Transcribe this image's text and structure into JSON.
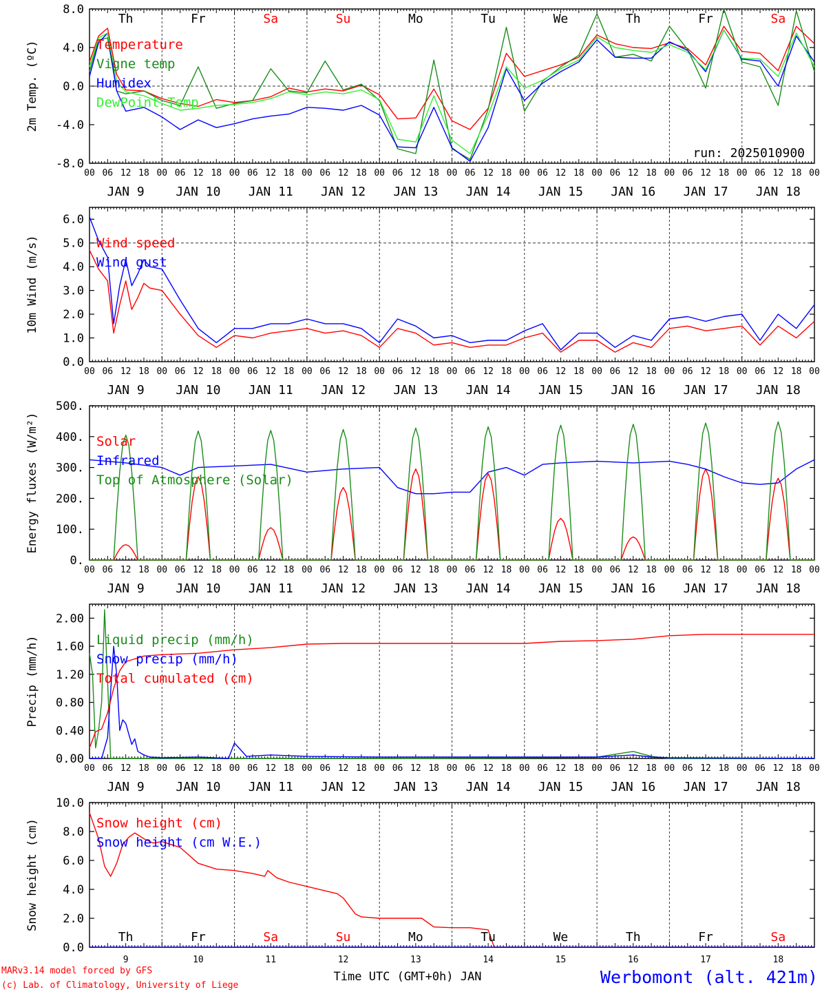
{
  "colors": {
    "red": "#ff0000",
    "green": "#1a8c1a",
    "blue": "#0000ff",
    "light_green": "#33ee33",
    "axis": "#000000",
    "grid": "#333333"
  },
  "days": {
    "names": [
      "Th",
      "Fr",
      "Sa",
      "Su",
      "Mo",
      "Tu",
      "We",
      "Th",
      "Fr",
      "Sa"
    ],
    "weekend_flags": [
      false,
      false,
      true,
      true,
      false,
      false,
      false,
      false,
      false,
      true
    ],
    "date_labels": [
      "JAN  9",
      "JAN 10",
      "JAN 11",
      "JAN 12",
      "JAN 13",
      "JAN 14",
      "JAN 15",
      "JAN 16",
      "JAN 17",
      "JAN 18"
    ],
    "day_numbers": [
      "9",
      "10",
      "11",
      "12",
      "13",
      "14",
      "15",
      "16",
      "17",
      "18"
    ],
    "hour_labels": [
      "00",
      "06",
      "12",
      "18"
    ],
    "end_hour": "00"
  },
  "footer": {
    "model_line": "MARv3.14 model forced by GFS",
    "lab_line": "(c) Lab. of Climatology, University of Liege",
    "time_axis": "Time UTC (GMT+0h) JAN",
    "station": "Werbomont (alt. 421m)"
  },
  "chart_data": [
    {
      "type": "line",
      "ylabel": "2m Temp. (ºC)",
      "ylim": [
        -8,
        8
      ],
      "yticks": [
        "8.0",
        "4.0",
        "0.0",
        "-4.0",
        "-8.0"
      ],
      "annotation": "run: 2025010900",
      "x_unit": "hours from JAN 9 00 UTC",
      "series": [
        {
          "name": "Temperature",
          "color": "red",
          "x": [
            0,
            3,
            6,
            9,
            12,
            18,
            24,
            30,
            36,
            42,
            48,
            54,
            60,
            66,
            72,
            78,
            84,
            90,
            96,
            102,
            108,
            114,
            120,
            126,
            132,
            138,
            144,
            150,
            156,
            162,
            168,
            174,
            180,
            186,
            192,
            198,
            204,
            210,
            216,
            222,
            228,
            234,
            240
          ],
          "y": [
            2.5,
            5.2,
            6.0,
            1.2,
            -0.4,
            -0.5,
            -1.3,
            -1.8,
            -2.1,
            -1.4,
            -1.7,
            -1.5,
            -1.1,
            -0.2,
            -0.6,
            -0.3,
            -0.5,
            0.1,
            -0.9,
            -3.4,
            -3.3,
            -0.3,
            -3.6,
            -4.5,
            -2.3,
            3.4,
            1.0,
            1.6,
            2.2,
            3.0,
            5.3,
            4.4,
            4.0,
            3.9,
            4.5,
            3.9,
            2.2,
            6.2,
            3.6,
            3.4,
            1.6,
            6.2,
            4.4
          ]
        },
        {
          "name": "Vigne temp",
          "color": "green",
          "x": [
            0,
            3,
            6,
            9,
            12,
            18,
            24,
            30,
            36,
            42,
            48,
            54,
            60,
            66,
            72,
            78,
            84,
            90,
            96,
            102,
            108,
            114,
            120,
            126,
            132,
            138,
            144,
            150,
            156,
            162,
            168,
            174,
            180,
            186,
            192,
            198,
            204,
            210,
            216,
            222,
            228,
            234,
            240
          ],
          "y": [
            1.5,
            4.8,
            5.0,
            -0.5,
            -0.8,
            -0.5,
            -1.5,
            -2.0,
            2.0,
            -2.3,
            -1.8,
            -1.5,
            1.8,
            -0.5,
            -0.7,
            2.6,
            -0.4,
            0.2,
            -1.5,
            -6.5,
            -7.0,
            2.7,
            -6.5,
            -7.6,
            -2.4,
            6.1,
            -2.6,
            0.5,
            2.0,
            3.2,
            7.5,
            3.0,
            3.3,
            2.6,
            6.2,
            3.8,
            -0.2,
            8.0,
            2.5,
            2.0,
            -2.0,
            7.8,
            1.5
          ]
        },
        {
          "name": "Humidex",
          "color": "blue",
          "x": [
            0,
            3,
            6,
            9,
            12,
            18,
            24,
            30,
            36,
            42,
            48,
            54,
            60,
            66,
            72,
            78,
            84,
            90,
            96,
            102,
            108,
            114,
            120,
            126,
            132,
            138,
            144,
            150,
            156,
            162,
            168,
            174,
            180,
            186,
            192,
            198,
            204,
            210,
            216,
            222,
            228,
            234,
            240
          ],
          "y": [
            1.0,
            4.5,
            5.5,
            -0.5,
            -2.6,
            -2.2,
            -3.2,
            -4.5,
            -3.5,
            -4.3,
            -3.9,
            -3.4,
            -3.1,
            -2.9,
            -2.2,
            -2.3,
            -2.5,
            -2.0,
            -3.0,
            -6.3,
            -6.4,
            -2.2,
            -6.4,
            -7.8,
            -4.3,
            1.8,
            -1.5,
            0.3,
            1.5,
            2.5,
            4.8,
            3.0,
            2.9,
            2.9,
            4.6,
            3.7,
            1.5,
            5.8,
            2.8,
            2.6,
            0.0,
            5.2,
            2.5
          ]
        },
        {
          "name": "DewPoint Temp",
          "color": "light_green",
          "x": [
            0,
            3,
            6,
            9,
            12,
            18,
            24,
            30,
            36,
            42,
            48,
            54,
            60,
            66,
            72,
            78,
            84,
            90,
            96,
            102,
            108,
            114,
            120,
            126,
            132,
            138,
            144,
            150,
            156,
            162,
            168,
            174,
            180,
            186,
            192,
            198,
            204,
            210,
            216,
            222,
            228,
            234,
            240
          ],
          "y": [
            2.0,
            5.0,
            5.5,
            0.5,
            -0.6,
            -1.0,
            -1.8,
            -2.5,
            -2.3,
            -2.0,
            -1.9,
            -1.7,
            -1.3,
            -0.6,
            -0.9,
            -0.6,
            -0.8,
            -0.4,
            -1.4,
            -5.5,
            -5.8,
            -1.0,
            -5.6,
            -7.0,
            -3.0,
            2.0,
            -0.2,
            0.6,
            1.8,
            2.7,
            5.1,
            4.0,
            3.7,
            3.5,
            4.3,
            3.5,
            1.7,
            5.8,
            2.9,
            2.8,
            1.0,
            5.5,
            2.0
          ]
        }
      ]
    },
    {
      "type": "line",
      "ylabel": "10m Wind (m/s)",
      "ylim": [
        0,
        6.5
      ],
      "yticks": [
        "6.0",
        "5.0",
        "4.0",
        "3.0",
        "2.0",
        "1.0",
        "0.0"
      ],
      "dashed_reference": 5.0,
      "x_unit": "hours from JAN 9 00 UTC",
      "series": [
        {
          "name": "Wind speed",
          "color": "red",
          "x": [
            0,
            3,
            6,
            8,
            10,
            12,
            14,
            16,
            18,
            20,
            24,
            30,
            36,
            42,
            48,
            54,
            60,
            66,
            72,
            78,
            84,
            90,
            96,
            102,
            108,
            114,
            120,
            126,
            132,
            138,
            144,
            150,
            156,
            162,
            168,
            174,
            180,
            186,
            192,
            198,
            204,
            210,
            216,
            222,
            228,
            234,
            240
          ],
          "y": [
            4.7,
            3.9,
            3.4,
            1.2,
            2.4,
            3.4,
            2.2,
            2.7,
            3.3,
            3.1,
            3.0,
            2.0,
            1.1,
            0.6,
            1.1,
            1.0,
            1.2,
            1.3,
            1.4,
            1.2,
            1.3,
            1.1,
            0.6,
            1.4,
            1.2,
            0.7,
            0.8,
            0.6,
            0.7,
            0.7,
            1.0,
            1.2,
            0.4,
            0.9,
            0.9,
            0.4,
            0.8,
            0.6,
            1.4,
            1.5,
            1.3,
            1.4,
            1.5,
            0.7,
            1.5,
            1.0,
            1.7
          ]
        },
        {
          "name": "Wind gust",
          "color": "blue",
          "x": [
            0,
            3,
            6,
            8,
            10,
            12,
            14,
            16,
            18,
            20,
            24,
            30,
            36,
            42,
            48,
            54,
            60,
            66,
            72,
            78,
            84,
            90,
            96,
            102,
            108,
            114,
            120,
            126,
            132,
            138,
            144,
            150,
            156,
            162,
            168,
            174,
            180,
            186,
            192,
            198,
            204,
            210,
            216,
            222,
            228,
            234,
            240
          ],
          "y": [
            6.1,
            5.1,
            4.4,
            1.6,
            3.2,
            4.3,
            3.2,
            3.7,
            4.3,
            4.0,
            3.9,
            2.6,
            1.4,
            0.8,
            1.4,
            1.4,
            1.6,
            1.6,
            1.8,
            1.6,
            1.6,
            1.4,
            0.8,
            1.8,
            1.5,
            1.0,
            1.1,
            0.8,
            0.9,
            0.9,
            1.3,
            1.6,
            0.5,
            1.2,
            1.2,
            0.6,
            1.1,
            0.9,
            1.8,
            1.9,
            1.7,
            1.9,
            2.0,
            0.9,
            2.0,
            1.4,
            2.4
          ]
        }
      ]
    },
    {
      "type": "line",
      "ylabel": "Energy fluxes (W/m²)",
      "ylim": [
        0,
        500
      ],
      "yticks": [
        "500.",
        "400.",
        "300.",
        "200.",
        "100.",
        "0."
      ],
      "x_unit": "hours from JAN 9 00 UTC",
      "solar_cycle_hours": {
        "rise": 8,
        "set": 16
      },
      "series": [
        {
          "name": "Solar",
          "color": "red",
          "daily_peaks": [
            50,
            270,
            105,
            235,
            295,
            280,
            135,
            75,
            295,
            265
          ]
        },
        {
          "name": "Infrared",
          "color": "blue",
          "x": [
            0,
            12,
            24,
            30,
            36,
            48,
            60,
            72,
            84,
            96,
            102,
            108,
            114,
            120,
            126,
            132,
            138,
            144,
            150,
            156,
            168,
            180,
            192,
            198,
            204,
            210,
            216,
            222,
            228,
            234,
            240
          ],
          "y": [
            325,
            315,
            300,
            275,
            300,
            305,
            310,
            285,
            295,
            300,
            235,
            215,
            215,
            220,
            220,
            285,
            300,
            275,
            310,
            315,
            320,
            315,
            320,
            310,
            295,
            270,
            250,
            245,
            250,
            295,
            325
          ]
        },
        {
          "name": "Top of Atmosphere (Solar)",
          "color": "green",
          "daily_peaks": [
            405,
            418,
            420,
            423,
            428,
            432,
            437,
            440,
            444,
            448
          ]
        }
      ]
    },
    {
      "type": "line",
      "ylabel": "Precip (mm/h)",
      "ylim": [
        0,
        2.2
      ],
      "yticks": [
        "2.00",
        "1.60",
        "1.20",
        "0.80",
        "0.40",
        "0.00"
      ],
      "x_unit": "hours from JAN 9 00 UTC",
      "series": [
        {
          "name": "Liquid precip (mm/h)",
          "color": "green",
          "x": [
            0,
            1,
            2,
            3,
            4,
            5,
            6,
            7,
            8,
            9,
            10,
            12,
            24,
            48,
            72,
            96,
            144,
            168,
            180,
            186,
            192,
            204,
            240
          ],
          "y": [
            1.5,
            1.2,
            0.15,
            0.4,
            0.8,
            2.12,
            1.1,
            0.0,
            0.0,
            0.0,
            0.0,
            0.0,
            0.0,
            0.0,
            0.0,
            0.0,
            0.01,
            0.02,
            0.1,
            0.03,
            0.0,
            0.0,
            0.0
          ]
        },
        {
          "name": "Snow precip (mm/h)",
          "color": "blue",
          "x": [
            0,
            4,
            6,
            8,
            9,
            10,
            11,
            12,
            13,
            14,
            15,
            16,
            18,
            20,
            24,
            36,
            46,
            48,
            52,
            60,
            72,
            96,
            144,
            168,
            180,
            186,
            192,
            240
          ],
          "y": [
            0.0,
            0.0,
            0.3,
            1.6,
            1.2,
            0.4,
            0.55,
            0.5,
            0.35,
            0.2,
            0.28,
            0.1,
            0.05,
            0.02,
            0.01,
            0.02,
            0.0,
            0.22,
            0.03,
            0.05,
            0.03,
            0.02,
            0.02,
            0.02,
            0.05,
            0.02,
            0.01,
            0.0
          ]
        },
        {
          "name": "Total cumulated (cm)",
          "color": "red",
          "x": [
            0,
            2,
            4,
            6,
            8,
            10,
            12,
            18,
            24,
            36,
            48,
            60,
            72,
            84,
            96,
            108,
            120,
            132,
            144,
            156,
            168,
            180,
            192,
            204,
            216,
            228,
            240
          ],
          "y": [
            0.15,
            0.38,
            0.42,
            0.65,
            1.0,
            1.25,
            1.38,
            1.46,
            1.48,
            1.5,
            1.55,
            1.58,
            1.63,
            1.64,
            1.64,
            1.64,
            1.64,
            1.64,
            1.64,
            1.67,
            1.68,
            1.7,
            1.75,
            1.77,
            1.77,
            1.77,
            1.77
          ]
        }
      ]
    },
    {
      "type": "line",
      "ylabel": "Snow height (cm)",
      "ylim": [
        0,
        10
      ],
      "yticks": [
        "10.0",
        "8.0",
        "6.0",
        "4.0",
        "2.0",
        "0.0"
      ],
      "x_unit": "hours from JAN 9 00 UTC",
      "series": [
        {
          "name": "Snow height (cm)",
          "color": "red",
          "x": [
            0,
            3,
            5,
            7,
            9,
            11,
            13,
            15,
            18,
            21,
            24,
            30,
            36,
            42,
            48,
            54,
            58,
            59,
            62,
            66,
            72,
            78,
            82,
            84,
            88,
            90,
            96,
            102,
            108,
            110,
            114,
            120,
            124,
            126,
            132,
            134,
            144,
            240
          ],
          "y": [
            9.3,
            7.5,
            5.6,
            4.9,
            5.8,
            7.1,
            7.6,
            7.9,
            7.5,
            7.2,
            7.3,
            6.9,
            5.8,
            5.4,
            5.3,
            5.1,
            4.9,
            5.3,
            4.8,
            4.5,
            4.2,
            3.9,
            3.7,
            3.4,
            2.3,
            2.1,
            2.0,
            2.0,
            2.0,
            2.0,
            1.4,
            1.35,
            1.35,
            1.35,
            1.2,
            0.0,
            0.0,
            0.0
          ]
        },
        {
          "name": "Snow height (cm W.E.)",
          "color": "blue",
          "x": [
            0,
            240
          ],
          "y": [
            0.0,
            0.0
          ]
        }
      ]
    }
  ]
}
